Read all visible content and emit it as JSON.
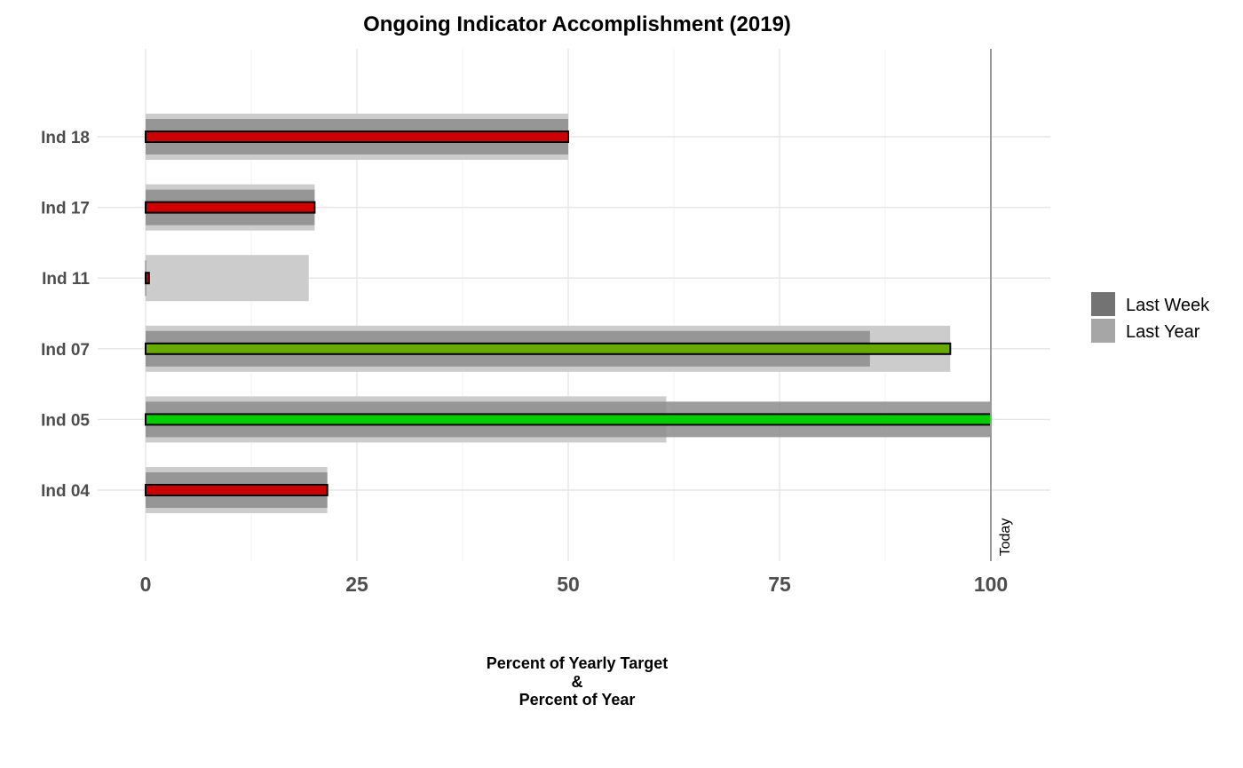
{
  "chart_data": {
    "type": "bar",
    "orientation": "horizontal",
    "title": "Ongoing Indicator Accomplishment (2019)",
    "xlabel_lines": [
      "Percent of Yearly Target",
      "&",
      "Percent of Year"
    ],
    "xlim": [
      0,
      105
    ],
    "xticks": [
      "0",
      "25",
      "50",
      "75",
      "100"
    ],
    "xtick_values": [
      0,
      25,
      50,
      75,
      100
    ],
    "grid": true,
    "categories": [
      "Ind 18",
      "Ind 17",
      "Ind 11",
      "Ind 07",
      "Ind 05",
      "Ind 04"
    ],
    "series": [
      {
        "name": "Last Year",
        "values": [
          50,
          20,
          19.3,
          95.2,
          61.6,
          21.5
        ],
        "color": "#cccccc"
      },
      {
        "name": "Last Week",
        "values": [
          50,
          20,
          0,
          85.7,
          100,
          21.5
        ],
        "color": "#8c8c8c"
      },
      {
        "values": [
          50,
          20,
          0.4,
          95.2,
          100,
          21.5
        ],
        "colors": [
          "#cc0000",
          "#cc0000",
          "#cc0000",
          "#66aa00",
          "#00cc00",
          "#cc0000"
        ]
      }
    ],
    "reference_line": {
      "value": 100,
      "label": "Today",
      "color": "#999999"
    },
    "legend": {
      "position": "right",
      "items": [
        {
          "label": "Last Week",
          "color": "#737373"
        },
        {
          "label": "Last Year",
          "color": "#a6a6a6"
        }
      ]
    }
  }
}
